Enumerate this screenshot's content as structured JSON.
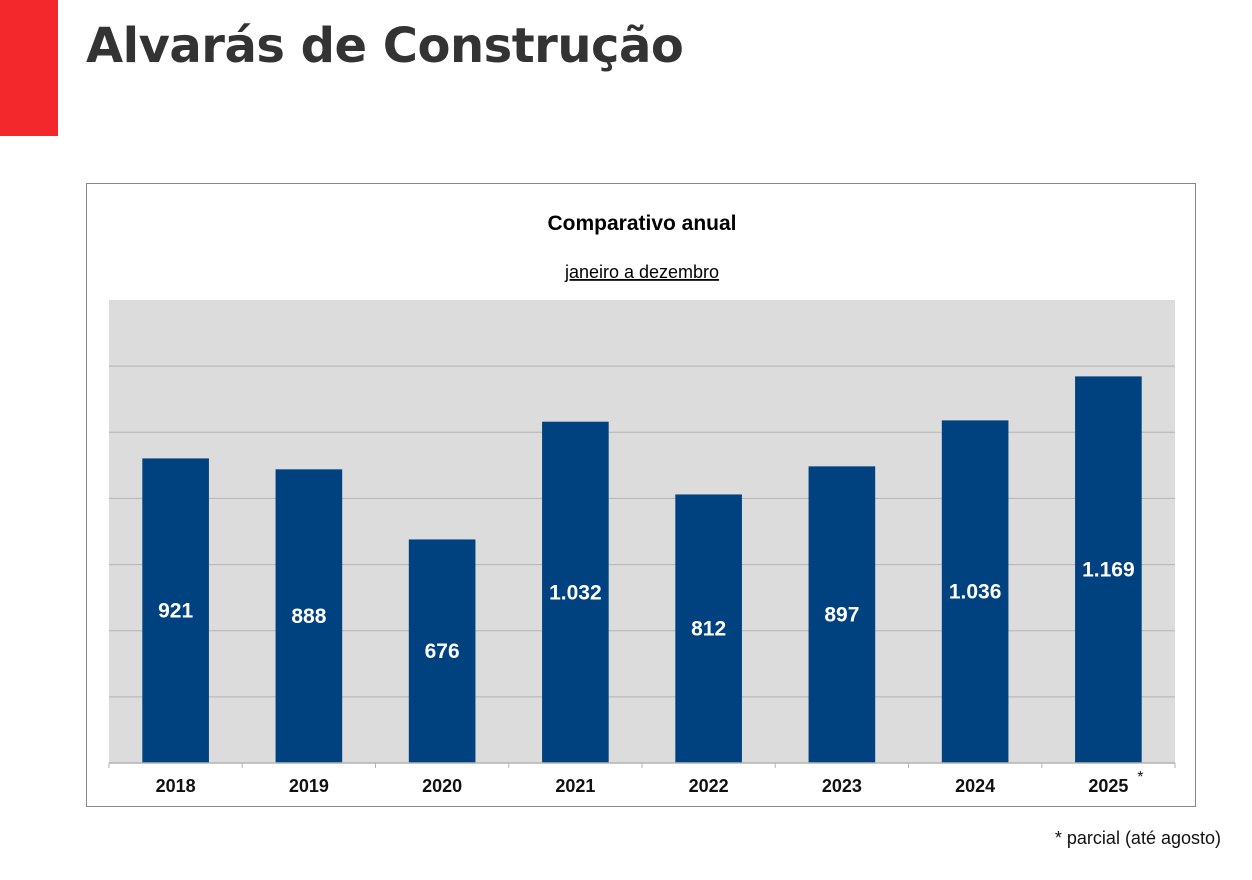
{
  "page": {
    "title": "Alvarás de Construção",
    "footnote": "* parcial (até agosto)",
    "accent_color": "#f2282c"
  },
  "chart_data": {
    "type": "bar",
    "title": "Comparativo anual",
    "subtitle": "janeiro a dezembro",
    "categories": [
      "2018",
      "2019",
      "2020",
      "2021",
      "2022",
      "2023",
      "2024",
      "2025"
    ],
    "values": [
      921,
      888,
      676,
      1032,
      812,
      897,
      1036,
      1169
    ],
    "value_labels": [
      "921",
      "888",
      "676",
      "1.032",
      "812",
      "897",
      "1.036",
      "1.169"
    ],
    "category_markers": [
      "",
      "",
      "",
      "",
      "",
      "",
      "",
      "*"
    ],
    "xlabel": "",
    "ylabel": "",
    "ylim": [
      0,
      1400
    ],
    "grid_step": 200,
    "grid": true,
    "bar_color": "#00427f",
    "plot_background": "#dcdcdc",
    "gridline_color": "#b3b3b3"
  }
}
